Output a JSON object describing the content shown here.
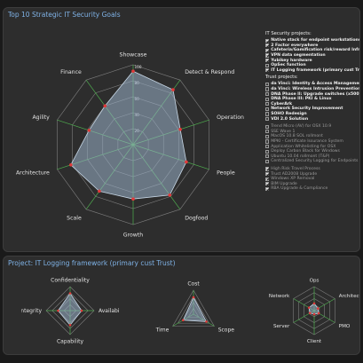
{
  "main": {
    "title": "Top 10 Strategic IT Security Goals",
    "radar": {
      "axes": [
        "Showcase",
        "Detect & Respond",
        "Operation",
        "People",
        "Dogfood",
        "Growth",
        "Scale",
        "Architecture",
        "Agility",
        "Finance"
      ],
      "ticks": [
        "20",
        "40",
        "60",
        "80",
        "100"
      ],
      "values": [
        92,
        85,
        62,
        70,
        78,
        68,
        72,
        82,
        58,
        60
      ]
    }
  },
  "side_list": {
    "sections": [
      {
        "title": "IT Security projects:",
        "items": [
          {
            "label": "Native stack for endpoint workstations",
            "checked": true,
            "faded": false
          },
          {
            "label": "2 Factor everywhere",
            "checked": true,
            "faded": false
          },
          {
            "label": "Cafeteria/Gamification risk/reward Infra",
            "checked": true,
            "faded": false
          },
          {
            "label": "VPN data segmentation",
            "checked": true,
            "faded": false
          },
          {
            "label": "Yubikey hardware",
            "checked": true,
            "faded": false
          },
          {
            "label": "OpSec function",
            "checked": false,
            "faded": false
          },
          {
            "label": "IT Logging framework (primary cust Trust)",
            "checked": true,
            "faded": false
          }
        ]
      },
      {
        "title": "Trust projects:",
        "items": [
          {
            "label": "da Vinci: Identity & Access Management",
            "checked": false,
            "faded": false
          },
          {
            "label": "da Vinci: Wireless Intrusion Prevention",
            "checked": false,
            "faded": false
          },
          {
            "label": "DNA Phase II: Upgrade switches (x500)",
            "checked": false,
            "faded": false
          },
          {
            "label": "DNA Phase III: PKI & Linux",
            "checked": false,
            "faded": false
          },
          {
            "label": "CyberArk",
            "checked": false,
            "faded": false
          },
          {
            "label": "Network Security Improvement",
            "checked": false,
            "faded": false
          },
          {
            "label": "SOHO Redesign",
            "checked": false,
            "faded": false
          },
          {
            "label": "VDI 2.0 Solution",
            "checked": false,
            "faded": false
          }
        ]
      },
      {
        "title": "",
        "items": [
          {
            "label": "Trend Micro (AV) for OSX 10.9",
            "checked": false,
            "faded": true
          },
          {
            "label": "SSE Wave 1",
            "checked": false,
            "faded": true
          },
          {
            "label": "MacOS 10.8 SOL rollmont",
            "checked": false,
            "faded": true
          },
          {
            "label": "MPKI - Certificate Issurance System",
            "checked": false,
            "faded": true
          },
          {
            "label": "Application Whitelisting for OSX",
            "checked": false,
            "faded": true
          },
          {
            "label": "Deploy Carbon Black for Windows",
            "checked": false,
            "faded": true
          },
          {
            "label": "Ubuntu 10.04 rollmont (T&P)",
            "checked": false,
            "faded": true
          },
          {
            "label": "Centralized Security Logging for Endpoints",
            "checked": false,
            "faded": true
          }
        ]
      },
      {
        "title": "",
        "items": [
          {
            "label": "High Risk Travel Process",
            "checked": true,
            "faded": true
          },
          {
            "label": "Trust AD2008 Upgrade",
            "checked": true,
            "faded": true
          },
          {
            "label": "Windows XP Removal",
            "checked": true,
            "faded": true
          },
          {
            "label": "BIM Upgrade",
            "checked": true,
            "faded": true
          },
          {
            "label": "RBA Upgrade & Compliance",
            "checked": true,
            "faded": true
          }
        ]
      }
    ]
  },
  "project": {
    "title": "Project: IT Logging framework (primary cust Trust)",
    "radars": [
      {
        "axes": [
          "Confidentiality",
          "Availability",
          "Capability",
          "Integrity"
        ],
        "values": [
          72,
          48,
          60,
          50
        ]
      },
      {
        "axes": [
          "Cost",
          "Scope",
          "Time"
        ],
        "values": [
          70,
          62,
          50
        ]
      },
      {
        "axes": [
          "Ops",
          "Architecture",
          "PMO",
          "Client",
          "Server",
          "Network"
        ],
        "values": [
          30,
          18,
          22,
          15,
          20,
          25
        ]
      }
    ]
  },
  "colors": {
    "panel_bg": "#2d2d2d",
    "title_blue": "#7fb2e6",
    "radar_fill": "#9bb3cb",
    "radar_stroke": "#c7d7e6",
    "point_red": "#e23a3a",
    "axis_green": "#4fae4f",
    "grid": "#7e7e7e"
  }
}
